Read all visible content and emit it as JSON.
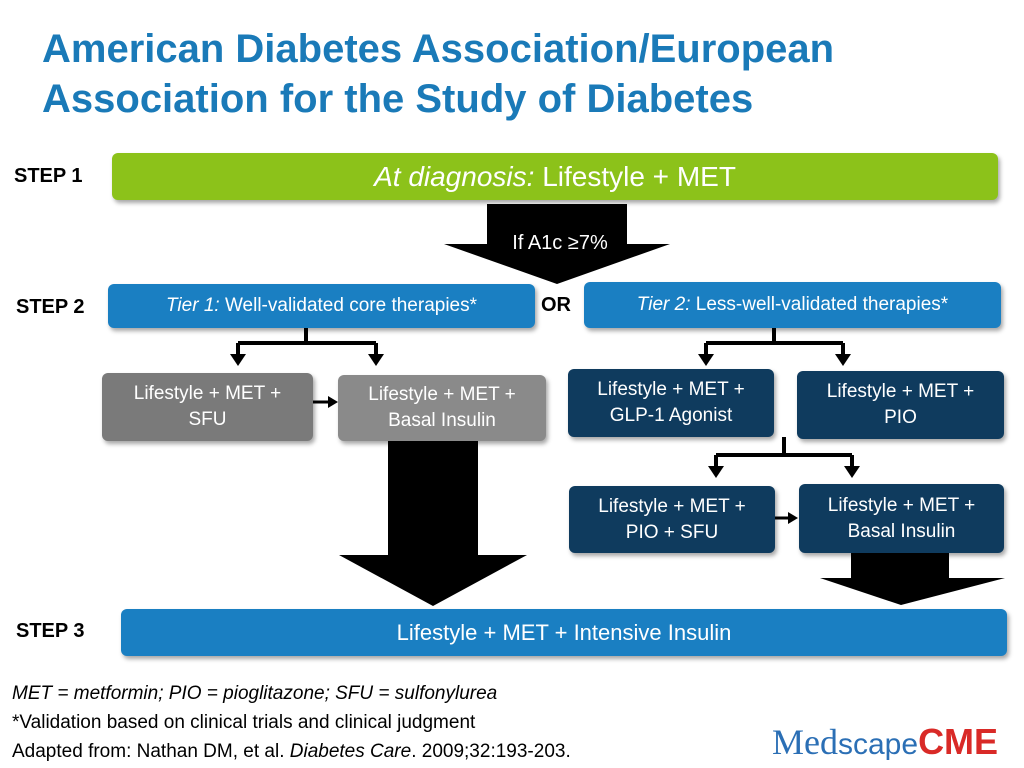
{
  "title": {
    "line1": "American Diabetes Association/European",
    "line2": "Association for the Study of Diabetes"
  },
  "steps": {
    "step1": "STEP 1",
    "step2": "STEP 2",
    "step3": "STEP 3"
  },
  "step1_box": {
    "italic": "At diagnosis:",
    "text": "Lifestyle + MET"
  },
  "arrow1_label": "If A1c ≥7%",
  "or_label": "OR",
  "tier1": {
    "italic": "Tier 1:",
    "text": "Well-validated core therapies*"
  },
  "tier2": {
    "italic": "Tier 2:",
    "text": "Less-well-validated therapies*"
  },
  "tier1_options": [
    {
      "line1": "Lifestyle + MET +",
      "line2": "SFU"
    },
    {
      "line1": "Lifestyle + MET +",
      "line2": "Basal Insulin"
    }
  ],
  "tier2_options": [
    {
      "line1": "Lifestyle + MET +",
      "line2": "GLP-1 Agonist"
    },
    {
      "line1": "Lifestyle + MET +",
      "line2": "PIO"
    },
    {
      "line1": "Lifestyle + MET +",
      "line2": "PIO + SFU"
    },
    {
      "line1": "Lifestyle + MET +",
      "line2": "Basal Insulin"
    }
  ],
  "step3_box": "Lifestyle + MET + Intensive Insulin",
  "footnotes": {
    "abbrev": "MET = metformin; PIO = pioglitazone; SFU = sulfonylurea",
    "validation": "*Validation based on clinical trials and clinical judgment",
    "source_prefix": "Adapted from: Nathan DM, et al. ",
    "source_journal": "Diabetes Care",
    "source_suffix": ". 2009;32:193-203."
  },
  "logo": {
    "part1": "Med",
    "part2": "scape",
    "part3": "CME"
  },
  "colors": {
    "title": "#1a7ab8",
    "step1_green": "#8cc21a",
    "tier_blue": "#1a7fc2",
    "tier1_gray": "#7a7a7a",
    "tier2_navy": "#0f3b5e",
    "logo_blue": "#2b6fb5",
    "logo_red": "#d92a27"
  }
}
